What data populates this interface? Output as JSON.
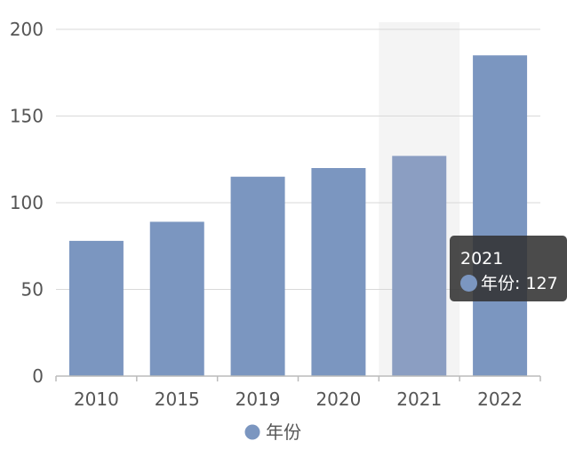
{
  "chart_data": {
    "type": "bar",
    "categories": [
      "2010",
      "2015",
      "2019",
      "2020",
      "2021",
      "2022"
    ],
    "series": [
      {
        "name": "年份",
        "values": [
          78,
          89,
          115,
          120,
          127,
          185
        ]
      }
    ],
    "ylim": [
      0,
      200
    ],
    "yticks": [
      "0",
      "50",
      "100",
      "150",
      "200"
    ],
    "grid": true,
    "legend": "bottom-center",
    "highlighted_category": "2021",
    "colors": {
      "bar": "#7b96c0",
      "bar_highlight": "#8b9ec2",
      "axis": "#bbbbbb",
      "grid": "#d9d9d9",
      "text": "#555555",
      "highlight_band": "#f4f4f4"
    }
  },
  "tooltip": {
    "title": "2021",
    "series_name": "年份",
    "value": "127",
    "label": "年份: 127"
  },
  "legend": {
    "label": "年份"
  }
}
